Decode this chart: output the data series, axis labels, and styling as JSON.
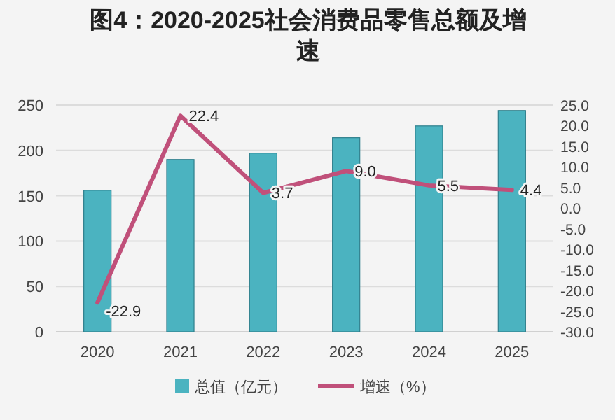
{
  "chart_data": {
    "type": "bar",
    "title": "图4：2020-2025社会消费品零售总额及增速",
    "categories": [
      "2020",
      "2021",
      "2022",
      "2023",
      "2024",
      "2025"
    ],
    "series": [
      {
        "name": "总值（亿元）",
        "color": "#4bb3c0",
        "values": [
          156,
          190,
          197,
          214,
          227,
          244
        ]
      },
      {
        "name": "增速（%）",
        "type": "line",
        "axis": "y2",
        "color": "#c0507a",
        "values": [
          -22.9,
          22.4,
          3.7,
          9.0,
          5.5,
          4.4
        ],
        "value_labels": [
          "-22.9",
          "22.4",
          "3.7",
          "9.0",
          "5.5",
          "4.4"
        ]
      }
    ],
    "ylim": [
      0,
      250
    ],
    "yticks": [
      0,
      50,
      100,
      150,
      200,
      250
    ],
    "y2lim": [
      -30,
      25
    ],
    "y2ticks": [
      {
        "value": 25,
        "label": "25.0"
      },
      {
        "value": 20,
        "label": "20.0"
      },
      {
        "value": 15,
        "label": "15.0"
      },
      {
        "value": 10,
        "label": "10.0"
      },
      {
        "value": 5,
        "label": "5.0"
      },
      {
        "value": 0,
        "label": "0.0"
      },
      {
        "value": -5,
        "label": "-5.0"
      },
      {
        "value": -10,
        "label": "-10.0"
      },
      {
        "value": -15,
        "label": "-15.0"
      },
      {
        "value": -20,
        "label": "-20.0"
      },
      {
        "value": -25,
        "label": "-25.0"
      },
      {
        "value": -30,
        "label": "-30.0"
      }
    ],
    "grid": "y",
    "legend": "bottom",
    "marker": "none"
  }
}
